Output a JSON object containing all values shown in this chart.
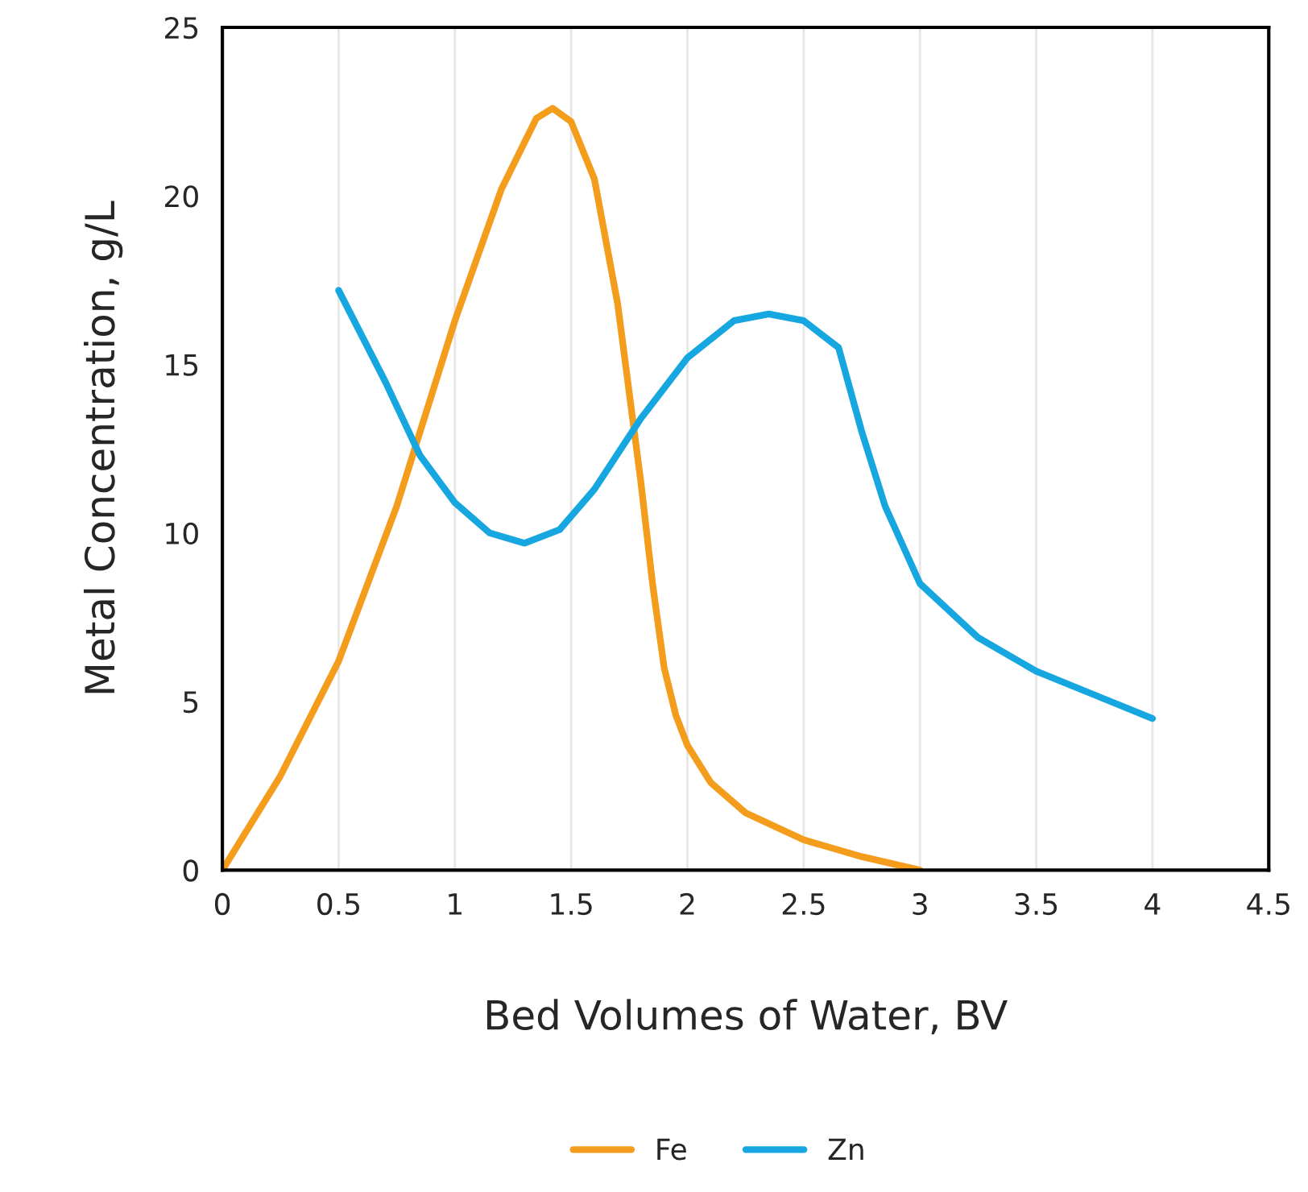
{
  "chart_data": {
    "type": "line",
    "xlabel": "Bed Volumes of Water, BV",
    "ylabel": "Metal Concentration, g/L",
    "xlim": [
      0,
      4.5
    ],
    "xticks": [
      0,
      0.5,
      1,
      1.5,
      2,
      2.5,
      3,
      3.5,
      4,
      4.5
    ],
    "ylim": [
      0,
      25
    ],
    "yticks": [
      0,
      5,
      10,
      15,
      20,
      25
    ],
    "grid": "x",
    "legend": "bottom",
    "marker": "none",
    "line_style": "solid",
    "series": [
      {
        "name": "Fe",
        "color": "#f49c1c",
        "x": [
          0,
          0.25,
          0.5,
          0.75,
          1.0,
          1.2,
          1.35,
          1.42,
          1.5,
          1.6,
          1.7,
          1.8,
          1.85,
          1.9,
          1.95,
          2.0,
          2.1,
          2.25,
          2.5,
          2.75,
          3.0
        ],
        "values": [
          0,
          2.8,
          6.2,
          10.8,
          16.3,
          20.2,
          22.3,
          22.6,
          22.2,
          20.5,
          16.8,
          11.5,
          8.5,
          6.0,
          4.6,
          3.7,
          2.6,
          1.7,
          0.9,
          0.4,
          0
        ]
      },
      {
        "name": "Zn",
        "color": "#16a6e0",
        "x": [
          0.5,
          0.7,
          0.85,
          1.0,
          1.15,
          1.3,
          1.45,
          1.6,
          1.8,
          2.0,
          2.2,
          2.35,
          2.5,
          2.65,
          2.75,
          2.85,
          3.0,
          3.25,
          3.5,
          3.75,
          4.0
        ],
        "values": [
          17.2,
          14.5,
          12.3,
          10.9,
          10.0,
          9.7,
          10.1,
          11.3,
          13.4,
          15.2,
          16.3,
          16.5,
          16.3,
          15.5,
          13.0,
          10.8,
          8.5,
          6.9,
          5.9,
          5.2,
          4.5
        ]
      }
    ]
  }
}
